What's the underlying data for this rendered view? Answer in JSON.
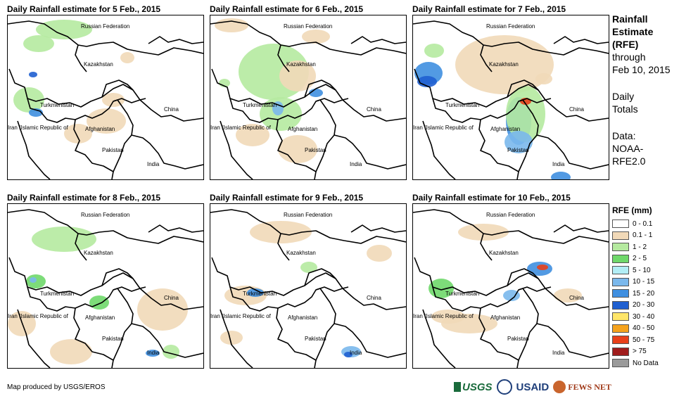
{
  "panels": [
    {
      "title": "Daily Rainfall estimate for 5 Feb., 2015",
      "labels": {
        "russia": "Russian Federation",
        "kazakhstan": "Kazakhstan",
        "turkmenistan": "Turkmenistan",
        "iran": "Iran (Islamic Republic of",
        "afghanistan": "Afghanistan",
        "pakistan": "Pakistan",
        "china": "China",
        "india": "India"
      }
    },
    {
      "title": "Daily Rainfall estimate for 6 Feb., 2015",
      "labels": {
        "russia": "Russian Federation",
        "kazakhstan": "Kazakhstan",
        "turkmenistan": "Turkmenistan",
        "iran": "Iran (Islamic Republic of",
        "afghanistan": "Afghanistan",
        "pakistan": "Pakistan",
        "china": "China",
        "india": "India"
      }
    },
    {
      "title": "Daily Rainfall estimate for 7 Feb., 2015",
      "labels": {
        "russia": "Russian Federation",
        "kazakhstan": "Kazakhstan",
        "turkmenistan": "Turkmenistan",
        "iran": "Iran (Islamic Republic of",
        "afghanistan": "Afghanistan",
        "pakistan": "Pakistan",
        "china": "China",
        "india": "India"
      }
    },
    {
      "title": "Daily Rainfall estimate for 8 Feb., 2015",
      "labels": {
        "russia": "Russian Federation",
        "kazakhstan": "Kazakhstan",
        "turkmenistan": "Turkmenistan",
        "iran": "Iran (Islamic Republic of",
        "afghanistan": "Afghanistan",
        "pakistan": "Pakistan",
        "china": "China",
        "india": "India"
      }
    },
    {
      "title": "Daily Rainfall estimate for 9 Feb., 2015",
      "labels": {
        "russia": "Russian Federation",
        "kazakhstan": "Kazakhstan",
        "turkmenistan": "Turkmenistan",
        "iran": "Iran (Islamic Republic of",
        "afghanistan": "Afghanistan",
        "pakistan": "Pakistan",
        "china": "China",
        "india": "India"
      }
    },
    {
      "title": "Daily Rainfall estimate for 10 Feb., 2015",
      "labels": {
        "russia": "Russian Federation",
        "kazakhstan": "Kazakhstan",
        "turkmenistan": "Turkmenistan",
        "iran": "Iran (Islamic Republic of",
        "afghanistan": "Afghanistan",
        "pakistan": "Pakistan",
        "china": "China",
        "india": "India"
      }
    }
  ],
  "sidebar": {
    "title": "Rainfall\nEstimate\n(RFE)",
    "through": "through\nFeb 10, 2015",
    "totals": "Daily\nTotals",
    "source": "Data:\nNOAA-\nRFE2.0"
  },
  "legend": {
    "title": "RFE (mm)",
    "items": [
      {
        "label": "0 - 0.1",
        "color": "#ffffff"
      },
      {
        "label": "0.1 - 1",
        "color": "#f1d9b8"
      },
      {
        "label": "1 - 2",
        "color": "#b5eaa0"
      },
      {
        "label": "2 - 5",
        "color": "#6fd86a"
      },
      {
        "label": "5 - 10",
        "color": "#b2eef5"
      },
      {
        "label": "10 - 15",
        "color": "#7ab8ec"
      },
      {
        "label": "15 - 20",
        "color": "#3f8fe0"
      },
      {
        "label": "20 - 30",
        "color": "#1f5fd0"
      },
      {
        "label": "30 - 40",
        "color": "#ffe66a"
      },
      {
        "label": "40 - 50",
        "color": "#f5a21c"
      },
      {
        "label": "50 - 75",
        "color": "#e8401a"
      },
      {
        "label": "> 75",
        "color": "#a01c1c"
      },
      {
        "label": "No Data",
        "color": "#9a9a9a"
      }
    ]
  },
  "footer": {
    "credit": "Map produced by USGS/EROS"
  },
  "logos": {
    "usgs": "USGS",
    "usaid": "USAID",
    "fews": "FEWS NET"
  }
}
